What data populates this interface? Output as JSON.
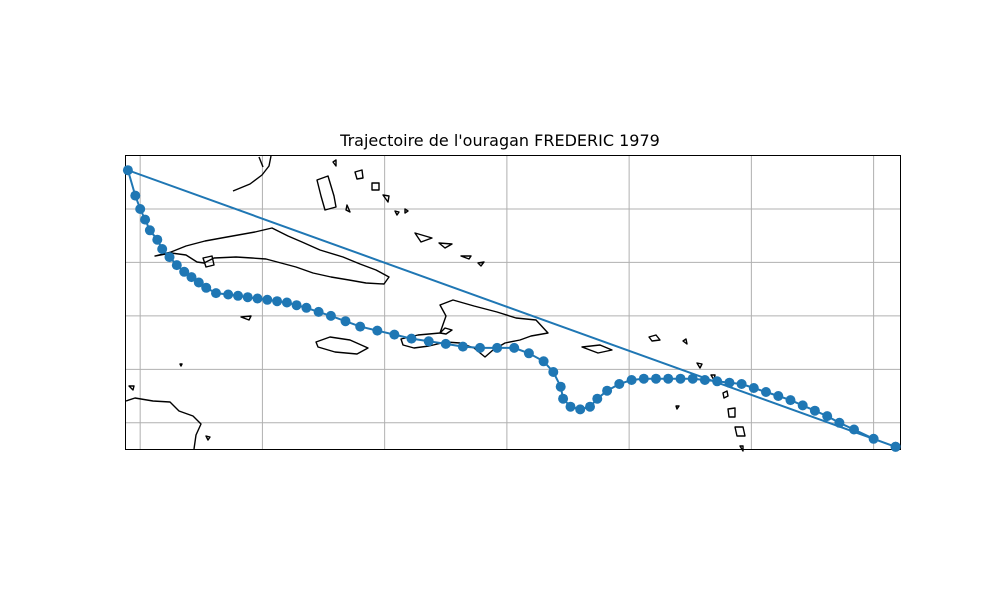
{
  "chart_data": {
    "type": "line",
    "title": "Trajectoire de l'ouragan FREDERIC 1979",
    "xlabel": "",
    "ylabel": "",
    "xlim": [
      -90.6,
      -58.9
    ],
    "ylim": [
      10.0,
      32.0
    ],
    "grid": true,
    "marker": "circle",
    "series_color": "#1f77b4",
    "basemap": "coastlines",
    "series": [
      {
        "points": [
          [
            -59.1,
            10.2
          ],
          [
            -60.0,
            10.8
          ],
          [
            -60.8,
            11.5
          ],
          [
            -61.4,
            12.0
          ],
          [
            -61.9,
            12.5
          ],
          [
            -62.4,
            12.9
          ],
          [
            -62.9,
            13.3
          ],
          [
            -63.4,
            13.7
          ],
          [
            -63.9,
            14.0
          ],
          [
            -64.4,
            14.3
          ],
          [
            -64.9,
            14.6
          ],
          [
            -65.4,
            14.9
          ],
          [
            -65.9,
            15.0
          ],
          [
            -66.4,
            15.1
          ],
          [
            -66.9,
            15.2
          ],
          [
            -67.4,
            15.3
          ],
          [
            -67.9,
            15.3
          ],
          [
            -68.4,
            15.3
          ],
          [
            -68.9,
            15.3
          ],
          [
            -69.4,
            15.3
          ],
          [
            -69.9,
            15.2
          ],
          [
            -70.4,
            14.9
          ],
          [
            -70.9,
            14.4
          ],
          [
            -71.3,
            13.8
          ],
          [
            -71.6,
            13.2
          ],
          [
            -72.0,
            13.0
          ],
          [
            -72.4,
            13.2
          ],
          [
            -72.7,
            13.8
          ],
          [
            -72.8,
            14.7
          ],
          [
            -73.1,
            15.8
          ],
          [
            -73.5,
            16.6
          ],
          [
            -74.1,
            17.2
          ],
          [
            -74.7,
            17.6
          ],
          [
            -75.4,
            17.6
          ],
          [
            -76.1,
            17.6
          ],
          [
            -76.8,
            17.7
          ],
          [
            -77.5,
            17.9
          ],
          [
            -78.2,
            18.1
          ],
          [
            -78.9,
            18.3
          ],
          [
            -79.6,
            18.6
          ],
          [
            -80.3,
            18.9
          ],
          [
            -81.0,
            19.2
          ],
          [
            -81.6,
            19.6
          ],
          [
            -82.2,
            20.0
          ],
          [
            -82.7,
            20.3
          ],
          [
            -83.2,
            20.6
          ],
          [
            -83.6,
            20.8
          ],
          [
            -84.0,
            21.0
          ],
          [
            -84.4,
            21.1
          ],
          [
            -84.8,
            21.2
          ],
          [
            -85.2,
            21.3
          ],
          [
            -85.6,
            21.4
          ],
          [
            -86.0,
            21.5
          ],
          [
            -86.4,
            21.6
          ],
          [
            -86.9,
            21.7
          ],
          [
            -87.3,
            22.1
          ],
          [
            -87.6,
            22.5
          ],
          [
            -87.9,
            22.9
          ],
          [
            -88.2,
            23.3
          ],
          [
            -88.5,
            23.8
          ],
          [
            -88.8,
            24.4
          ],
          [
            -89.1,
            25.0
          ],
          [
            -89.3,
            25.7
          ],
          [
            -89.6,
            26.4
          ],
          [
            -89.8,
            27.2
          ],
          [
            -90.0,
            28.0
          ],
          [
            -90.2,
            29.0
          ],
          [
            -90.5,
            30.9
          ],
          [
            -59.1,
            10.2
          ]
        ]
      }
    ]
  }
}
